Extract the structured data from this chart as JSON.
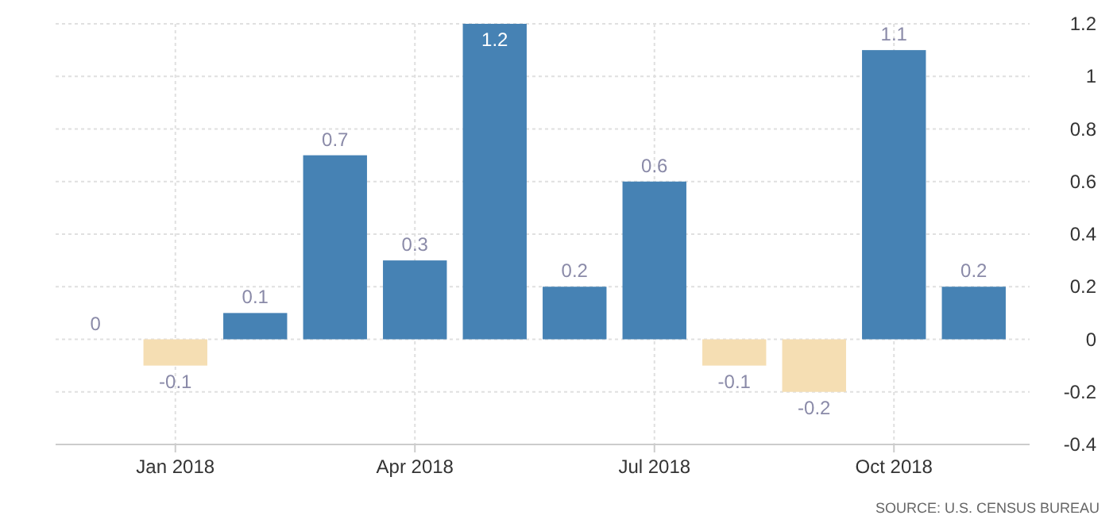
{
  "chart_data": {
    "type": "bar",
    "categories": [
      null,
      "Jan 2018",
      null,
      null,
      "Apr 2018",
      null,
      null,
      "Jul 2018",
      null,
      null,
      "Oct 2018",
      null
    ],
    "values": [
      0,
      -0.1,
      0.1,
      0.7,
      0.3,
      1.2,
      0.2,
      0.6,
      -0.1,
      -0.2,
      1.1,
      0.2
    ],
    "colors": [
      "#4682b4",
      "#f5deb3",
      "#4682b4",
      "#4682b4",
      "#4682b4",
      "#4682b4",
      "#4682b4",
      "#4682b4",
      "#f5deb3",
      "#f5deb3",
      "#4682b4",
      "#4682b4"
    ],
    "ylim": [
      -0.4,
      1.2
    ],
    "yticks": [
      -0.4,
      -0.2,
      0,
      0.2,
      0.4,
      0.6,
      0.8,
      1,
      1.2
    ],
    "grid": true,
    "data_labels": true,
    "annotations": [
      "SOURCE: U.S. CENSUS BUREAU"
    ]
  }
}
